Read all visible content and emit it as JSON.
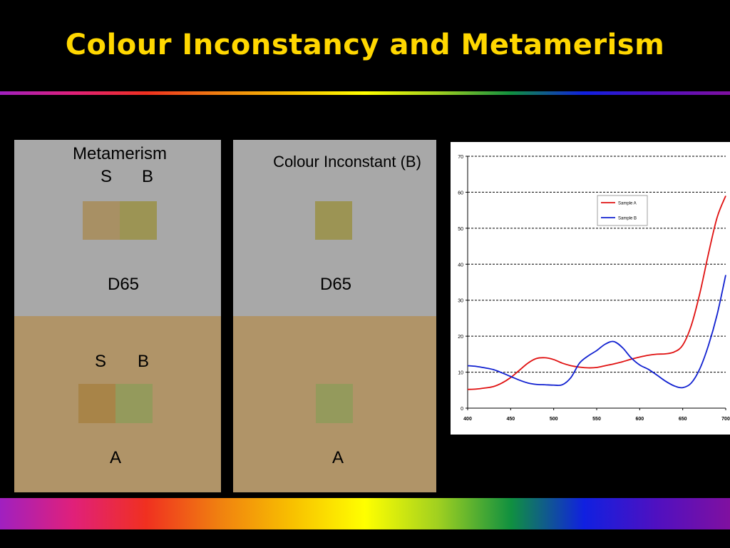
{
  "title": "Colour Inconstancy and Metamerism",
  "colors": {
    "title": "#FFD700",
    "panel_d65": "#A8A8A8",
    "panel_a": "#B09468",
    "spectrum": [
      "#A020C0",
      "#E0207A",
      "#F03020",
      "#F08010",
      "#F8C000",
      "#FFFF00",
      "#A0D020",
      "#109040",
      "#1020E0",
      "#5010C0",
      "#8010A0"
    ]
  },
  "panels": [
    {
      "heading": "Metamerism",
      "top_labels": [
        "S",
        "B"
      ],
      "top_illuminant": "D65",
      "bottom_labels": [
        "S",
        "B"
      ],
      "bottom_illuminant": "A",
      "top_swatches": [
        "#A89064",
        "#9C9454"
      ],
      "bottom_swatches": [
        "#A88448",
        "#949A5C"
      ]
    },
    {
      "heading": "Colour Inconstant (B)",
      "top_illuminant": "D65",
      "bottom_illuminant": "A",
      "top_swatches": [
        "#9C9454"
      ],
      "bottom_swatches": [
        "#949A5C"
      ]
    }
  ],
  "chart_data": {
    "type": "line",
    "title": "",
    "xlabel": "",
    "ylabel": "",
    "xlim": [
      400,
      700
    ],
    "ylim": [
      0,
      70
    ],
    "xticks": [
      400,
      450,
      500,
      550,
      600,
      650,
      700
    ],
    "yticks": [
      0,
      10,
      20,
      30,
      40,
      50,
      60,
      70
    ],
    "grid": "horizontal-dashed",
    "legend_position": "upper-right",
    "series": [
      {
        "name": "Sample A",
        "color": "#E01010",
        "x": [
          400,
          410,
          420,
          430,
          440,
          450,
          460,
          470,
          480,
          490,
          500,
          510,
          520,
          530,
          540,
          550,
          560,
          570,
          580,
          590,
          600,
          610,
          620,
          630,
          640,
          650,
          660,
          670,
          680,
          690,
          700
        ],
        "y": [
          5.2,
          5.3,
          5.6,
          6.0,
          7.0,
          8.5,
          10.5,
          12.5,
          13.8,
          14.0,
          13.5,
          12.5,
          11.8,
          11.4,
          11.2,
          11.3,
          11.8,
          12.3,
          12.9,
          13.6,
          14.2,
          14.7,
          15.0,
          15.1,
          15.6,
          17.5,
          23,
          32,
          43,
          53,
          59
        ]
      },
      {
        "name": "Sample B",
        "color": "#1020D0",
        "x": [
          400,
          410,
          420,
          430,
          440,
          450,
          460,
          470,
          480,
          490,
          500,
          510,
          520,
          530,
          540,
          550,
          560,
          570,
          580,
          590,
          600,
          610,
          620,
          630,
          640,
          650,
          660,
          670,
          680,
          690,
          700
        ],
        "y": [
          11.8,
          11.6,
          11.2,
          10.7,
          9.8,
          8.8,
          7.8,
          7.0,
          6.6,
          6.5,
          6.4,
          6.5,
          8.5,
          12.5,
          14.5,
          16.0,
          17.8,
          18.5,
          16.8,
          14.0,
          12.0,
          10.8,
          9.2,
          7.5,
          6.2,
          5.7,
          7.0,
          11.0,
          17.5,
          26,
          37
        ]
      }
    ]
  }
}
